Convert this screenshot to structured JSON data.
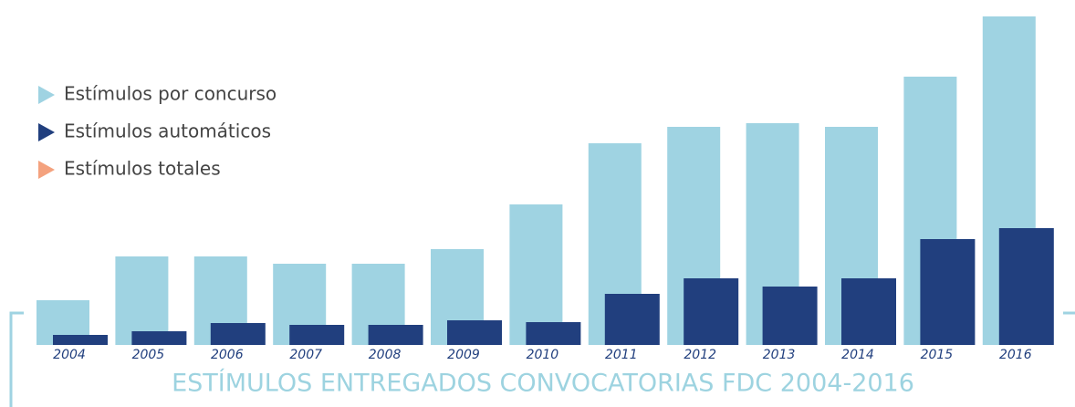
{
  "chart_data": {
    "type": "bar",
    "title": "ESTÍMULOS ENTREGADOS CONVOCATORIAS FDC 2004-2016",
    "categories": [
      "2004",
      "2005",
      "2006",
      "2007",
      "2008",
      "2009",
      "2010",
      "2011",
      "2012",
      "2013",
      "2014",
      "2015",
      "2016"
    ],
    "series": [
      {
        "name": "Estímulos por concurso",
        "color": "#9fd3e2",
        "values": [
          49,
          97,
          97,
          89,
          89,
          105,
          154,
          221,
          239,
          243,
          239,
          294,
          360
        ]
      },
      {
        "name": "Estímulos automáticos",
        "color": "#213f7e",
        "values": [
          11,
          15,
          24,
          22,
          22,
          27,
          25,
          56,
          73,
          64,
          73,
          116,
          128
        ]
      },
      {
        "name": "Estímulos totales",
        "color": "#f4a27e",
        "values": [
          null,
          null,
          null,
          null,
          null,
          null,
          null,
          null,
          null,
          null,
          null,
          null,
          null
        ]
      }
    ],
    "ylim": [
      0,
      360
    ]
  }
}
